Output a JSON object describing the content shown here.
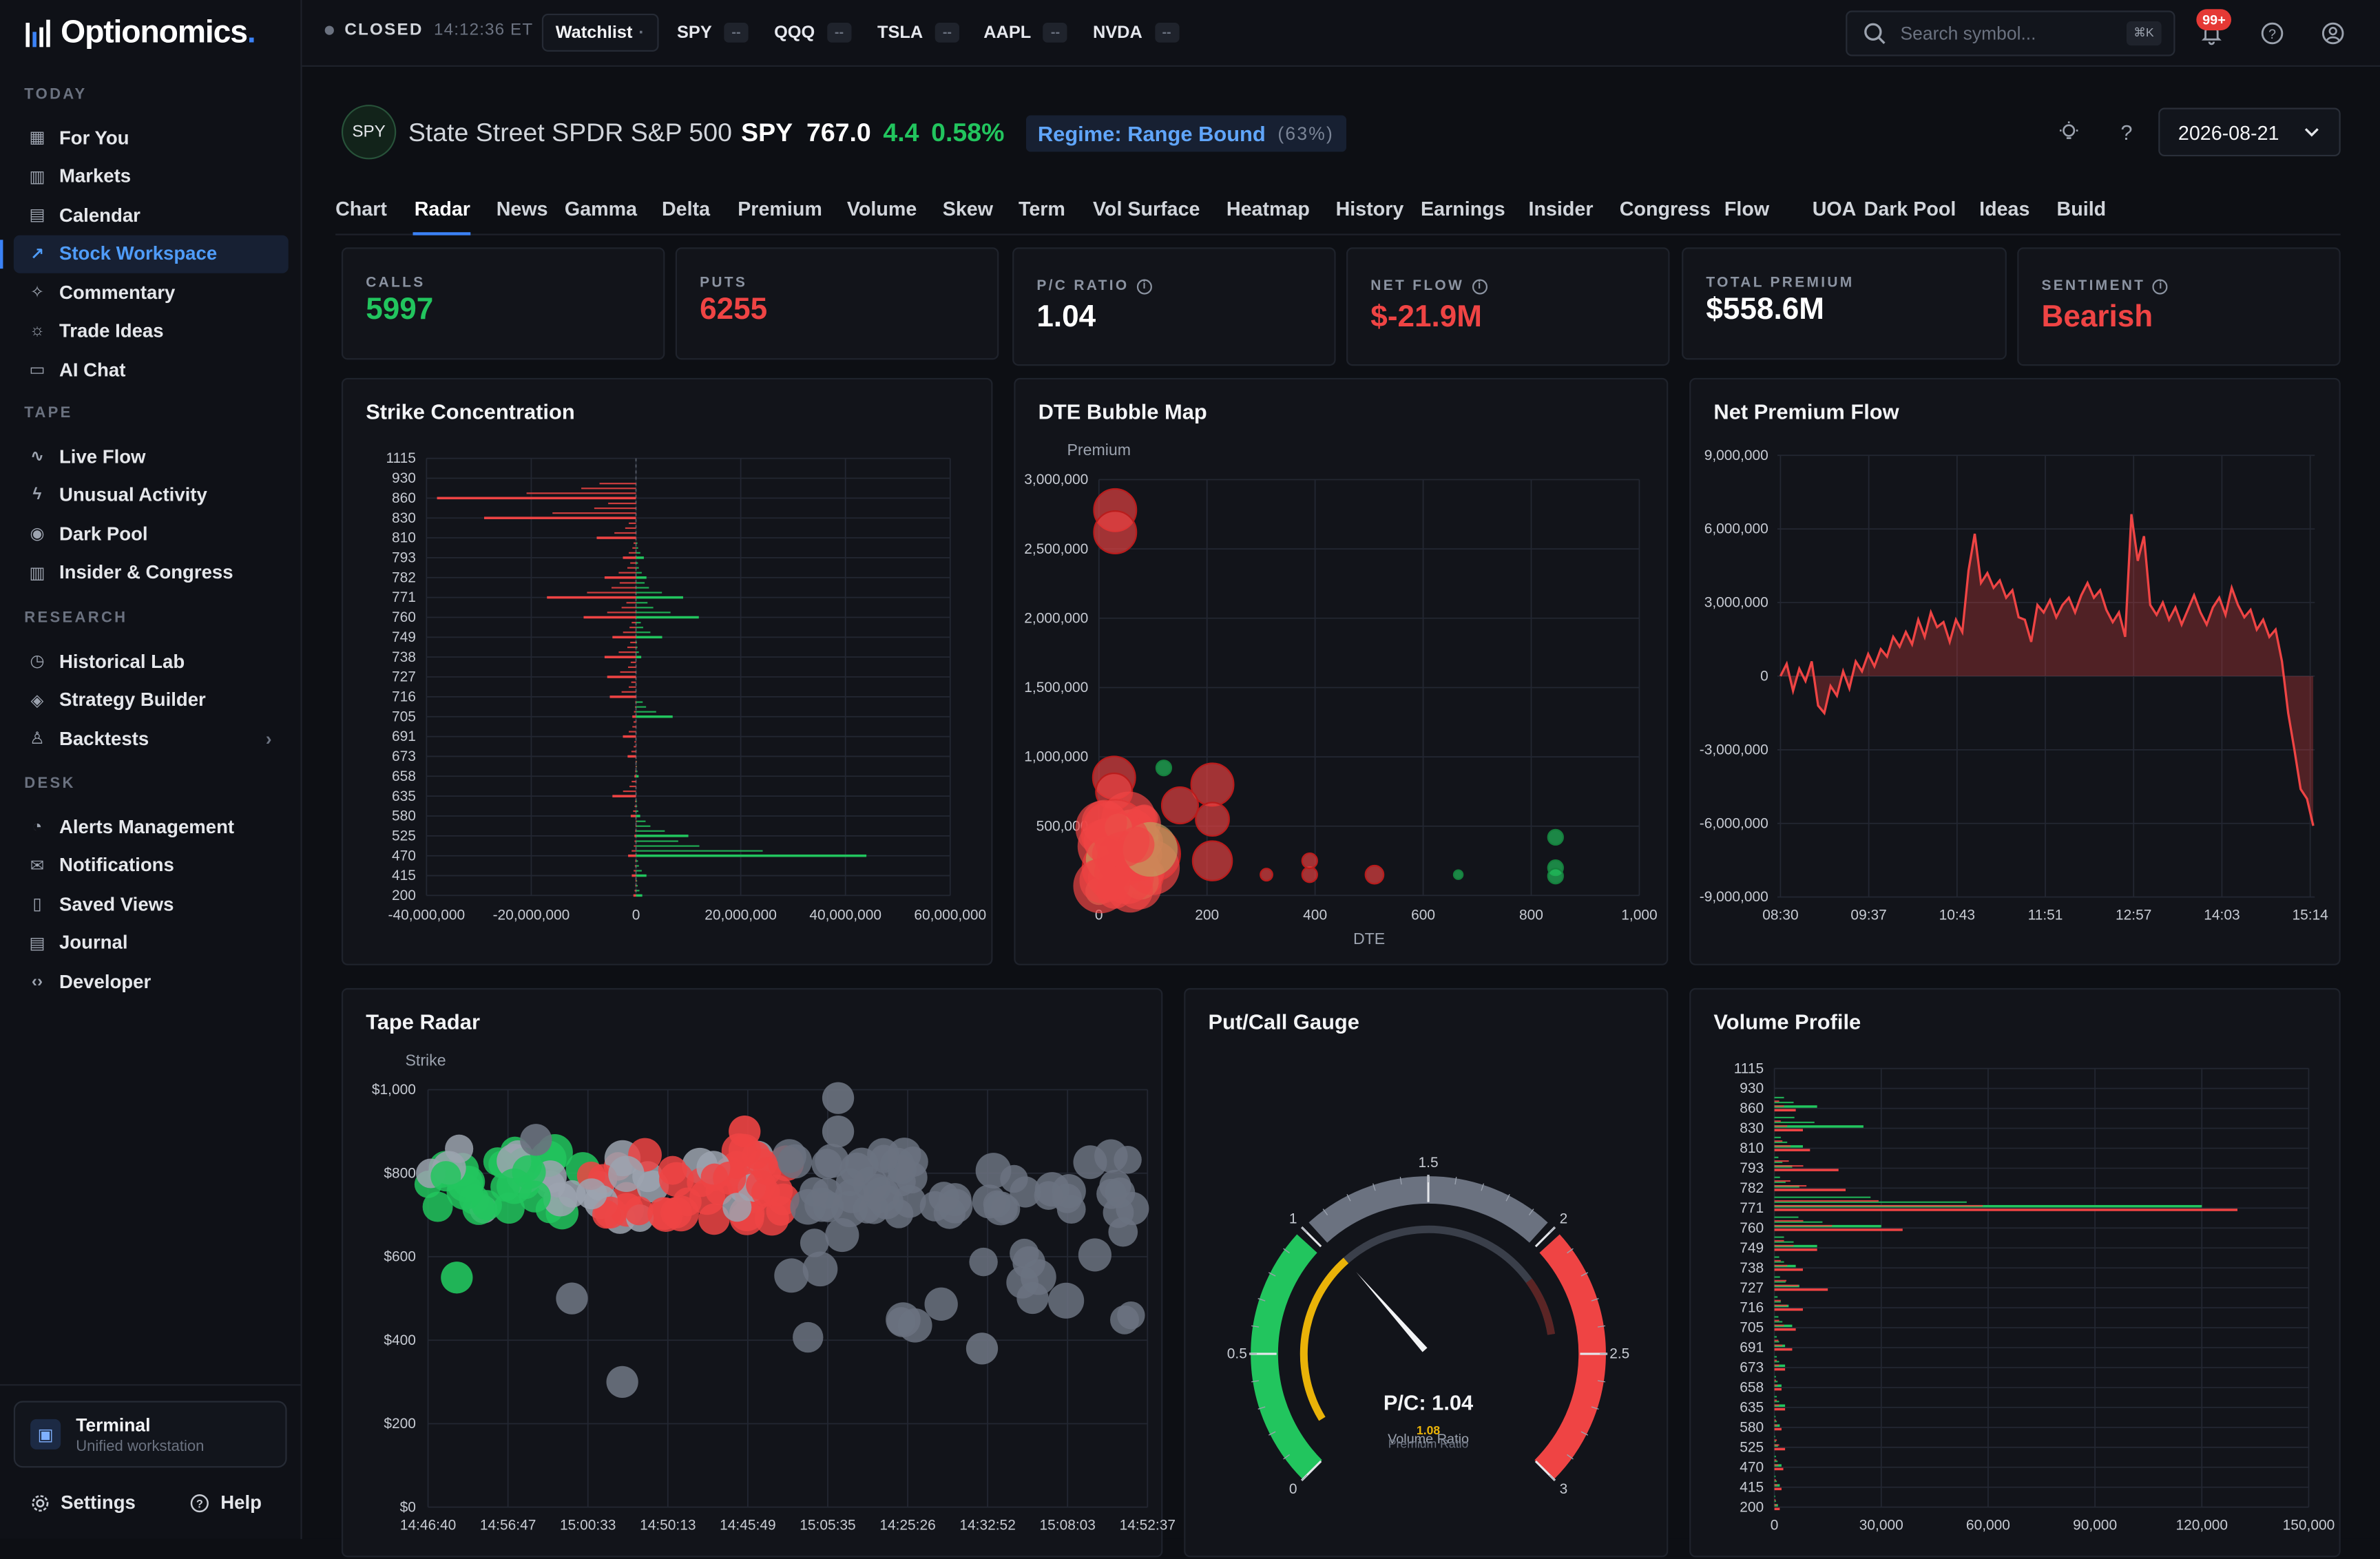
{
  "app": {
    "name": "Optionomics",
    "name_dot": "."
  },
  "sidebar": {
    "sections": [
      {
        "heading": "TODAY",
        "items": [
          {
            "label": "For You",
            "icon": "grid-icon"
          },
          {
            "label": "Markets",
            "icon": "bar-chart-icon"
          },
          {
            "label": "Calendar",
            "icon": "calendar-icon"
          },
          {
            "label": "Stock Workspace",
            "icon": "trend-icon",
            "active": true
          },
          {
            "label": "Commentary",
            "icon": "sparkle-icon"
          },
          {
            "label": "Trade Ideas",
            "icon": "lightbulb-icon"
          },
          {
            "label": "AI Chat",
            "icon": "chat-icon"
          }
        ]
      },
      {
        "heading": "TAPE",
        "items": [
          {
            "label": "Live Flow",
            "icon": "pulse-icon"
          },
          {
            "label": "Unusual Activity",
            "icon": "bolt-icon"
          },
          {
            "label": "Dark Pool",
            "icon": "eye-icon"
          },
          {
            "label": "Insider & Congress",
            "icon": "building-icon"
          }
        ]
      },
      {
        "heading": "RESEARCH",
        "items": [
          {
            "label": "Historical Lab",
            "icon": "clock-icon"
          },
          {
            "label": "Strategy Builder",
            "icon": "layers-icon"
          },
          {
            "label": "Backtests",
            "icon": "flask-icon",
            "chevron": true
          }
        ]
      },
      {
        "heading": "DESK",
        "items": [
          {
            "label": "Alerts Management",
            "icon": "bell-icon"
          },
          {
            "label": "Notifications",
            "icon": "mail-icon"
          },
          {
            "label": "Saved Views",
            "icon": "bookmark-icon"
          },
          {
            "label": "Journal",
            "icon": "book-icon"
          },
          {
            "label": "Developer",
            "icon": "code-icon"
          }
        ]
      }
    ],
    "terminal": {
      "title": "Terminal",
      "subtitle": "Unified workstation"
    },
    "settings_label": "Settings",
    "help_label": "Help"
  },
  "topbar": {
    "status": "CLOSED",
    "time": "14:12:36 ET",
    "watchlist_label": "Watchlist",
    "watchlist_caret": "·",
    "tickers": [
      {
        "symbol": "SPY",
        "value": "--"
      },
      {
        "symbol": "QQQ",
        "value": "--"
      },
      {
        "symbol": "TSLA",
        "value": "--"
      },
      {
        "symbol": "AAPL",
        "value": "--"
      },
      {
        "symbol": "NVDA",
        "value": "--"
      }
    ],
    "search_placeholder": "Search symbol...",
    "search_shortcut": "⌘K",
    "notif_count": "99+"
  },
  "header": {
    "badge": "SPY",
    "name": "State Street SPDR S&P 500",
    "ticker": "SPY",
    "price": "767.0",
    "change": "4.4",
    "change_pct": "0.58%",
    "regime_label": "Regime: Range Bound",
    "regime_pct": "(63%)",
    "date": "2026-08-21"
  },
  "tabs": [
    "Chart",
    "Radar",
    "News",
    "Gamma",
    "Delta",
    "Premium",
    "Volume",
    "Skew",
    "Term",
    "Vol Surface",
    "Heatmap",
    "History",
    "Earnings",
    "Insider",
    "Congress",
    "Flow",
    "UOA",
    "Dark Pool",
    "Ideas",
    "Build"
  ],
  "active_tab": "Radar",
  "stats": [
    {
      "label": "CALLS",
      "value": "5997",
      "color": "#22c55e",
      "info": false
    },
    {
      "label": "PUTS",
      "value": "6255",
      "color": "#ef4444",
      "info": false
    },
    {
      "label": "P/C RATIO",
      "value": "1.04",
      "color": "#ffffff",
      "info": true
    },
    {
      "label": "NET FLOW",
      "value": "$-21.9M",
      "color": "#ef4444",
      "info": true
    },
    {
      "label": "TOTAL PREMIUM",
      "value": "$558.6M",
      "color": "#ffffff",
      "info": false
    },
    {
      "label": "SENTIMENT",
      "value": "Bearish",
      "color": "#ef4444",
      "info": true
    }
  ],
  "panels": {
    "strike": {
      "title": "Strike Concentration"
    },
    "bubble": {
      "title": "DTE Bubble Map"
    },
    "netflow": {
      "title": "Net Premium Flow"
    },
    "tape": {
      "title": "Tape Radar"
    },
    "gauge": {
      "title": "Put/Call Gauge"
    },
    "volprofile": {
      "title": "Volume Profile"
    }
  },
  "chart_data": [
    {
      "id": "strike",
      "type": "bar",
      "orientation": "horizontal",
      "categories": [
        "200",
        "415",
        "470",
        "525",
        "580",
        "635",
        "658",
        "673",
        "691",
        "705",
        "716",
        "727",
        "738",
        "749",
        "760",
        "771",
        "782",
        "793",
        "810",
        "830",
        "860",
        "930",
        "1115"
      ],
      "xlim": [
        -40000000,
        60000000
      ],
      "xticks": [
        "-40,000,000",
        "-20,000,000",
        "0",
        "20,000,000",
        "40,000,000",
        "60,000,000"
      ],
      "series": [
        {
          "name": "Calls",
          "color": "#22c55e",
          "values": [
            1200000,
            2000000,
            44000000,
            10000000,
            800000,
            0,
            500000,
            0,
            0,
            7000000,
            0,
            0,
            1000000,
            5000000,
            12000000,
            9000000,
            2000000,
            1500000,
            0,
            0,
            0,
            0,
            0
          ]
        },
        {
          "name": "Puts",
          "color": "#ef4444",
          "values": [
            -500000,
            -800000,
            -1500000,
            -300000,
            -1000000,
            -4500000,
            -300000,
            -1600000,
            -2500000,
            -700000,
            -5000000,
            -5500000,
            -6000000,
            -4500000,
            -10000000,
            -17000000,
            -6000000,
            -2500000,
            -7500000,
            -29000000,
            -38000000,
            0,
            0
          ]
        }
      ]
    },
    {
      "id": "bubble",
      "type": "scatter",
      "xlabel": "DTE",
      "ylabel": "Premium",
      "xlim": [
        0,
        1000
      ],
      "ylim": [
        0,
        3000000
      ],
      "xticks": [
        "0",
        "200",
        "400",
        "600",
        "800",
        "1,000"
      ],
      "yticks": [
        "500,000",
        "1,000,000",
        "1,500,000",
        "2,000,000",
        "2,500,000",
        "3,000,000"
      ],
      "points": [
        {
          "x": 30,
          "y": 2780000,
          "r": 14,
          "c": "put"
        },
        {
          "x": 30,
          "y": 2620000,
          "r": 14,
          "c": "put"
        },
        {
          "x": 28,
          "y": 850000,
          "r": 14,
          "c": "put"
        },
        {
          "x": 28,
          "y": 750000,
          "r": 12,
          "c": "put"
        },
        {
          "x": 120,
          "y": 920000,
          "r": 5,
          "c": "call"
        },
        {
          "x": 210,
          "y": 800000,
          "r": 14,
          "c": "put"
        },
        {
          "x": 150,
          "y": 650000,
          "r": 12,
          "c": "put"
        },
        {
          "x": 210,
          "y": 550000,
          "r": 11,
          "c": "put"
        },
        {
          "x": 30,
          "y": 450000,
          "r": 22,
          "c": "put"
        },
        {
          "x": 60,
          "y": 350000,
          "r": 16,
          "c": "put"
        },
        {
          "x": 100,
          "y": 300000,
          "r": 18,
          "c": "put"
        },
        {
          "x": 20,
          "y": 200000,
          "r": 18,
          "c": "put"
        },
        {
          "x": 80,
          "y": 150000,
          "r": 14,
          "c": "put"
        },
        {
          "x": 210,
          "y": 250000,
          "r": 13,
          "c": "put"
        },
        {
          "x": 310,
          "y": 150000,
          "r": 4,
          "c": "put"
        },
        {
          "x": 390,
          "y": 150000,
          "r": 5,
          "c": "put"
        },
        {
          "x": 390,
          "y": 250000,
          "r": 5,
          "c": "put"
        },
        {
          "x": 510,
          "y": 150000,
          "r": 6,
          "c": "put"
        },
        {
          "x": 665,
          "y": 150000,
          "r": 3,
          "c": "call"
        },
        {
          "x": 845,
          "y": 420000,
          "r": 5,
          "c": "call"
        },
        {
          "x": 845,
          "y": 200000,
          "r": 5,
          "c": "call"
        },
        {
          "x": 845,
          "y": 140000,
          "r": 5,
          "c": "call"
        }
      ]
    },
    {
      "id": "netflow",
      "type": "area",
      "ylim": [
        -9000000,
        9000000
      ],
      "yticks": [
        "-9,000,000",
        "-6,000,000",
        "-3,000,000",
        "0",
        "3,000,000",
        "6,000,000",
        "9,000,000"
      ],
      "xticks": [
        "08:30",
        "09:37",
        "10:43",
        "11:51",
        "12:57",
        "14:03",
        "15:14"
      ],
      "values": [
        0,
        500000,
        -600000,
        300000,
        -200000,
        600000,
        -1200000,
        -1500000,
        -400000,
        -800000,
        200000,
        -500000,
        600000,
        200000,
        900000,
        400000,
        1100000,
        800000,
        1600000,
        1200000,
        1800000,
        1300000,
        2300000,
        1600000,
        2600000,
        2000000,
        2200000,
        1400000,
        2300000,
        1800000,
        4300000,
        5800000,
        3800000,
        4200000,
        3600000,
        3900000,
        3200000,
        3500000,
        2400000,
        2300000,
        1400000,
        2900000,
        2600000,
        3100000,
        2400000,
        2900000,
        3200000,
        2600000,
        3300000,
        3800000,
        3200000,
        3500000,
        2700000,
        2200000,
        2600000,
        1600000,
        6600000,
        4700000,
        5700000,
        2900000,
        2500000,
        3000000,
        2300000,
        2800000,
        2100000,
        2700000,
        3300000,
        2600000,
        2100000,
        2800000,
        3200000,
        2500000,
        3600000,
        2900000,
        2400000,
        2700000,
        1900000,
        2300000,
        1600000,
        1900000,
        600000,
        -1500000,
        -3000000,
        -4600000,
        -5000000,
        -6100000
      ]
    },
    {
      "id": "tape",
      "type": "scatter",
      "ylabel": "Strike",
      "ylim": [
        0,
        1000
      ],
      "yticks": [
        "$0",
        "$200",
        "$400",
        "$600",
        "$800",
        "$1,000"
      ],
      "xticks": [
        "14:46:40",
        "14:56:47",
        "15:00:33",
        "14:50:13",
        "14:45:49",
        "15:05:35",
        "14:25:26",
        "14:32:52",
        "15:08:03",
        "14:52:37"
      ],
      "points": []
    },
    {
      "id": "gauge",
      "type": "gauge",
      "min": 0,
      "max": 3,
      "ticks": [
        "0",
        "0.5",
        "1",
        "1.5",
        "2",
        "2.5",
        "3"
      ],
      "value": 1.04,
      "main_label": "P/C: 1.04",
      "inner_value": "1.08",
      "sub_label_1": "Volume Ratio",
      "sub_label_2": "Premium Ratio"
    },
    {
      "id": "volprofile",
      "type": "bar",
      "orientation": "horizontal",
      "categories": [
        "200",
        "415",
        "470",
        "525",
        "580",
        "635",
        "658",
        "673",
        "691",
        "705",
        "716",
        "727",
        "738",
        "749",
        "760",
        "771",
        "782",
        "793",
        "810",
        "830",
        "860",
        "930",
        "1115"
      ],
      "xlim": [
        0,
        150000
      ],
      "xticks": [
        "0",
        "30,000",
        "60,000",
        "90,000",
        "120,000",
        "150,000"
      ],
      "series": [
        {
          "name": "Calls",
          "color": "#22c55e",
          "values": [
            1000,
            1500,
            2000,
            1000,
            1500,
            3000,
            2000,
            3000,
            3000,
            5000,
            4000,
            7000,
            6000,
            12000,
            30000,
            120000,
            7000,
            5000,
            8000,
            25000,
            12000,
            0,
            0
          ]
        },
        {
          "name": "Puts",
          "color": "#ef4444",
          "values": [
            1500,
            2000,
            2500,
            3000,
            2000,
            3000,
            2000,
            3000,
            5000,
            6000,
            8000,
            15000,
            8000,
            12000,
            36000,
            130000,
            20000,
            18000,
            10000,
            8000,
            6000,
            0,
            0
          ]
        }
      ]
    }
  ]
}
